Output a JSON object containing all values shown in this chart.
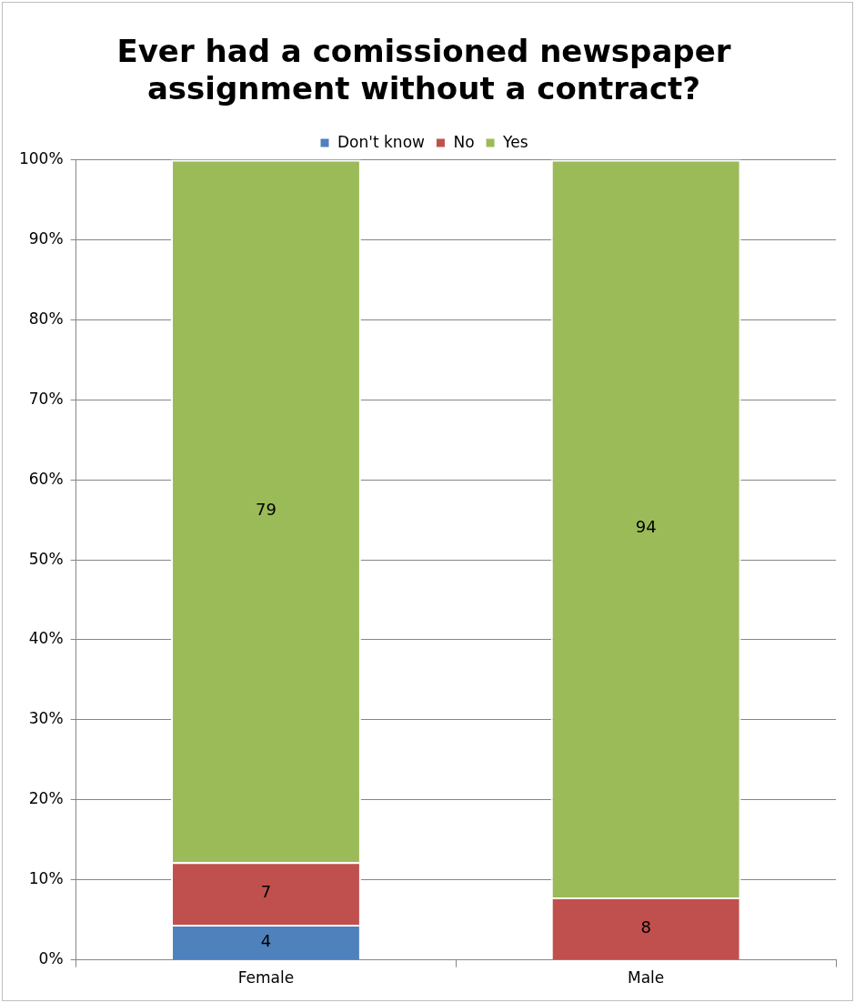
{
  "chart_data": {
    "type": "bar",
    "title": "Ever had a comissioned newspaper assignment without a contract?",
    "categories": [
      "Female",
      "Male"
    ],
    "series": [
      {
        "name": "Don't know",
        "color": "#4f81bd",
        "values": [
          4.4,
          null
        ]
      },
      {
        "name": "No",
        "color": "#c0504d",
        "values": [
          7.8,
          7.8
        ]
      },
      {
        "name": "Yes",
        "color": "#9bbb59",
        "values": [
          87.8,
          92.2
        ]
      }
    ],
    "annotations": [
      "4",
      "7",
      "79",
      "8",
      "94"
    ],
    "stacked": true,
    "ylim": [
      0,
      100
    ],
    "yticks": [
      {
        "value": 0,
        "label": "0%"
      },
      {
        "value": 10,
        "label": "10%"
      },
      {
        "value": 20,
        "label": "20%"
      },
      {
        "value": 30,
        "label": "30%"
      },
      {
        "value": 40,
        "label": "40%"
      },
      {
        "value": 50,
        "label": "50%"
      },
      {
        "value": 60,
        "label": "60%"
      },
      {
        "value": 70,
        "label": "70%"
      },
      {
        "value": 80,
        "label": "80%"
      },
      {
        "value": 90,
        "label": "90%"
      },
      {
        "value": 100,
        "label": "100%"
      }
    ],
    "grid": "y",
    "legend": "top"
  }
}
